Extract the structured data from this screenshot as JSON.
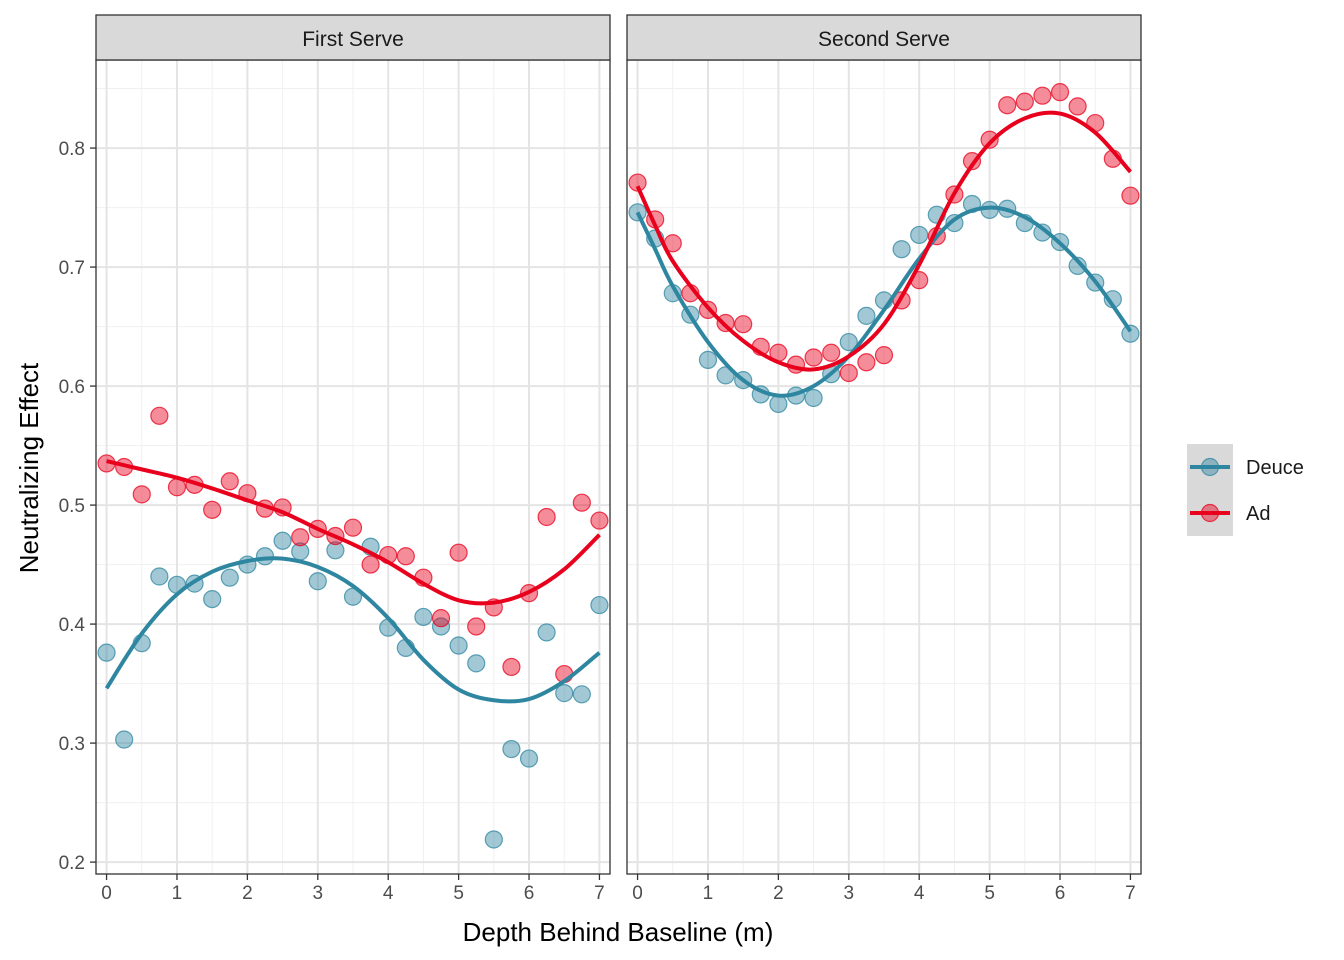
{
  "chart_data": {
    "type": "scatter",
    "xlabel": "Depth Behind Baseline (m)",
    "ylabel": "Neutralizing Effect",
    "xlim": [
      -0.15,
      7.15
    ],
    "ylim": [
      0.19,
      0.874
    ],
    "x_ticks": [
      "0",
      "1",
      "2",
      "3",
      "4",
      "5",
      "6",
      "7"
    ],
    "y_ticks": [
      "0.2",
      "0.3",
      "0.4",
      "0.5",
      "0.6",
      "0.7",
      "0.8"
    ],
    "grid": true,
    "legend_position": "right",
    "series_colors": {
      "Deuce": "#2e86a0",
      "Ad": "#e8001c"
    },
    "legend": [
      {
        "name": "Deuce",
        "color": "#2e86a0"
      },
      {
        "name": "Ad",
        "color": "#e8001c"
      }
    ],
    "panels": [
      {
        "title": "First Serve",
        "series": [
          {
            "name": "Deuce",
            "points": [
              [
                0,
                0.376
              ],
              [
                0.25,
                0.303
              ],
              [
                0.5,
                0.384
              ],
              [
                0.75,
                0.44
              ],
              [
                1,
                0.433
              ],
              [
                1.25,
                0.434
              ],
              [
                1.5,
                0.421
              ],
              [
                1.75,
                0.439
              ],
              [
                2,
                0.45
              ],
              [
                2.25,
                0.457
              ],
              [
                2.5,
                0.47
              ],
              [
                2.75,
                0.461
              ],
              [
                3,
                0.436
              ],
              [
                3.25,
                0.462
              ],
              [
                3.5,
                0.423
              ],
              [
                3.75,
                0.465
              ],
              [
                4,
                0.397
              ],
              [
                4.25,
                0.38
              ],
              [
                4.5,
                0.406
              ],
              [
                4.75,
                0.398
              ],
              [
                5,
                0.382
              ],
              [
                5.25,
                0.367
              ],
              [
                5.5,
                0.219
              ],
              [
                5.75,
                0.295
              ],
              [
                6,
                0.287
              ],
              [
                6.25,
                0.393
              ],
              [
                6.5,
                0.342
              ],
              [
                6.75,
                0.341
              ],
              [
                7,
                0.416
              ]
            ],
            "smooth": [
              [
                0,
                0.346
              ],
              [
                0.5,
                0.392
              ],
              [
                1,
                0.425
              ],
              [
                1.5,
                0.444
              ],
              [
                2,
                0.453
              ],
              [
                2.5,
                0.455
              ],
              [
                3,
                0.448
              ],
              [
                3.5,
                0.432
              ],
              [
                4,
                0.405
              ],
              [
                4.5,
                0.37
              ],
              [
                5,
                0.345
              ],
              [
                5.5,
                0.336
              ],
              [
                6,
                0.337
              ],
              [
                6.5,
                0.352
              ],
              [
                7,
                0.376
              ]
            ]
          },
          {
            "name": "Ad",
            "points": [
              [
                0,
                0.535
              ],
              [
                0.25,
                0.532
              ],
              [
                0.5,
                0.509
              ],
              [
                0.75,
                0.575
              ],
              [
                1,
                0.515
              ],
              [
                1.25,
                0.517
              ],
              [
                1.5,
                0.496
              ],
              [
                1.75,
                0.52
              ],
              [
                2,
                0.51
              ],
              [
                2.25,
                0.497
              ],
              [
                2.5,
                0.498
              ],
              [
                2.75,
                0.473
              ],
              [
                3,
                0.48
              ],
              [
                3.25,
                0.474
              ],
              [
                3.5,
                0.481
              ],
              [
                3.75,
                0.45
              ],
              [
                4,
                0.458
              ],
              [
                4.25,
                0.457
              ],
              [
                4.5,
                0.439
              ],
              [
                4.75,
                0.405
              ],
              [
                5,
                0.46
              ],
              [
                5.25,
                0.398
              ],
              [
                5.5,
                0.414
              ],
              [
                5.75,
                0.364
              ],
              [
                6,
                0.426
              ],
              [
                6.25,
                0.49
              ],
              [
                6.5,
                0.358
              ],
              [
                6.75,
                0.502
              ],
              [
                7,
                0.487
              ]
            ],
            "smooth": [
              [
                0,
                0.537
              ],
              [
                0.5,
                0.53
              ],
              [
                1,
                0.523
              ],
              [
                1.5,
                0.514
              ],
              [
                2,
                0.504
              ],
              [
                2.5,
                0.494
              ],
              [
                3,
                0.48
              ],
              [
                3.5,
                0.467
              ],
              [
                4,
                0.452
              ],
              [
                4.5,
                0.434
              ],
              [
                5,
                0.42
              ],
              [
                5.5,
                0.418
              ],
              [
                6,
                0.427
              ],
              [
                6.5,
                0.446
              ],
              [
                7,
                0.475
              ]
            ]
          }
        ]
      },
      {
        "title": "Second Serve",
        "series": [
          {
            "name": "Deuce",
            "points": [
              [
                0,
                0.746
              ],
              [
                0.25,
                0.724
              ],
              [
                0.5,
                0.678
              ],
              [
                0.75,
                0.66
              ],
              [
                1,
                0.622
              ],
              [
                1.25,
                0.609
              ],
              [
                1.5,
                0.605
              ],
              [
                1.75,
                0.593
              ],
              [
                2,
                0.585
              ],
              [
                2.25,
                0.592
              ],
              [
                2.5,
                0.59
              ],
              [
                2.75,
                0.61
              ],
              [
                3,
                0.637
              ],
              [
                3.25,
                0.659
              ],
              [
                3.5,
                0.672
              ],
              [
                3.75,
                0.715
              ],
              [
                4,
                0.727
              ],
              [
                4.25,
                0.744
              ],
              [
                4.5,
                0.737
              ],
              [
                4.75,
                0.753
              ],
              [
                5,
                0.748
              ],
              [
                5.25,
                0.749
              ],
              [
                5.5,
                0.737
              ],
              [
                5.75,
                0.729
              ],
              [
                6,
                0.721
              ],
              [
                6.25,
                0.701
              ],
              [
                6.5,
                0.687
              ],
              [
                6.75,
                0.673
              ],
              [
                7,
                0.644
              ]
            ],
            "smooth": [
              [
                0,
                0.746
              ],
              [
                0.25,
                0.715
              ],
              [
                0.5,
                0.684
              ],
              [
                1,
                0.637
              ],
              [
                1.5,
                0.605
              ],
              [
                2,
                0.592
              ],
              [
                2.5,
                0.6
              ],
              [
                3,
                0.625
              ],
              [
                3.5,
                0.664
              ],
              [
                4,
                0.707
              ],
              [
                4.5,
                0.74
              ],
              [
                5,
                0.75
              ],
              [
                5.5,
                0.742
              ],
              [
                6,
                0.72
              ],
              [
                6.5,
                0.688
              ],
              [
                7,
                0.646
              ]
            ]
          },
          {
            "name": "Ad",
            "points": [
              [
                0,
                0.771
              ],
              [
                0.25,
                0.74
              ],
              [
                0.5,
                0.72
              ],
              [
                0.75,
                0.678
              ],
              [
                1,
                0.664
              ],
              [
                1.25,
                0.653
              ],
              [
                1.5,
                0.652
              ],
              [
                1.75,
                0.633
              ],
              [
                2,
                0.628
              ],
              [
                2.25,
                0.618
              ],
              [
                2.5,
                0.624
              ],
              [
                2.75,
                0.628
              ],
              [
                3,
                0.611
              ],
              [
                3.25,
                0.62
              ],
              [
                3.5,
                0.626
              ],
              [
                3.75,
                0.672
              ],
              [
                4,
                0.689
              ],
              [
                4.25,
                0.726
              ],
              [
                4.5,
                0.761
              ],
              [
                4.75,
                0.789
              ],
              [
                5,
                0.807
              ],
              [
                5.25,
                0.836
              ],
              [
                5.5,
                0.839
              ],
              [
                5.75,
                0.844
              ],
              [
                6,
                0.847
              ],
              [
                6.25,
                0.835
              ],
              [
                6.5,
                0.821
              ],
              [
                6.75,
                0.791
              ],
              [
                7,
                0.76
              ]
            ],
            "smooth": [
              [
                0,
                0.768
              ],
              [
                0.25,
                0.735
              ],
              [
                0.5,
                0.705
              ],
              [
                1,
                0.666
              ],
              [
                1.5,
                0.638
              ],
              [
                2,
                0.62
              ],
              [
                2.5,
                0.614
              ],
              [
                3,
                0.625
              ],
              [
                3.5,
                0.652
              ],
              [
                4,
                0.702
              ],
              [
                4.5,
                0.762
              ],
              [
                5,
                0.804
              ],
              [
                5.5,
                0.825
              ],
              [
                6,
                0.829
              ],
              [
                6.5,
                0.813
              ],
              [
                7,
                0.78
              ]
            ]
          }
        ]
      }
    ]
  }
}
